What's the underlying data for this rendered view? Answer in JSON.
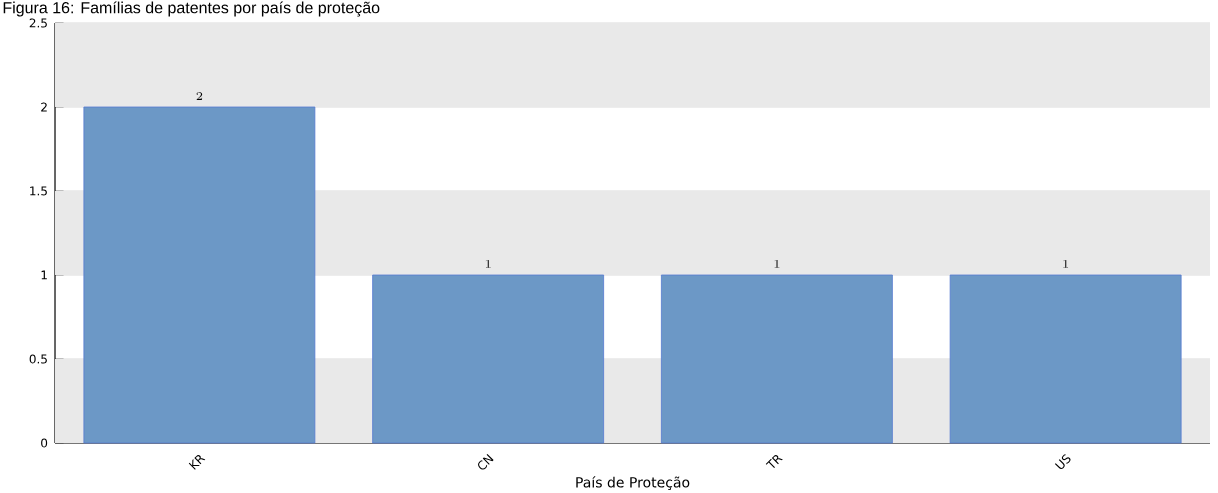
{
  "chart_data": {
    "type": "bar",
    "title": "Figura 16: Famílias de patentes por país de proteção",
    "xlabel": "País de Proteção",
    "categories": [
      "KR",
      "CN",
      "TR",
      "US"
    ],
    "values": [
      2,
      1,
      1,
      1
    ],
    "color": "#6c98c6",
    "ylim": [
      0,
      2.5
    ],
    "yticks": [
      0,
      0.5,
      1,
      1.5,
      2,
      2.5
    ],
    "grid": "y",
    "data_labels": true,
    "bands": [
      {
        "axis": "y",
        "from": 0,
        "to": 0.5,
        "color": "#e9e9e9"
      },
      {
        "axis": "y",
        "from": 1,
        "to": 1.5,
        "color": "#e9e9e9"
      },
      {
        "axis": "y",
        "from": 2,
        "to": 2.5,
        "color": "#e9e9e9"
      }
    ]
  }
}
